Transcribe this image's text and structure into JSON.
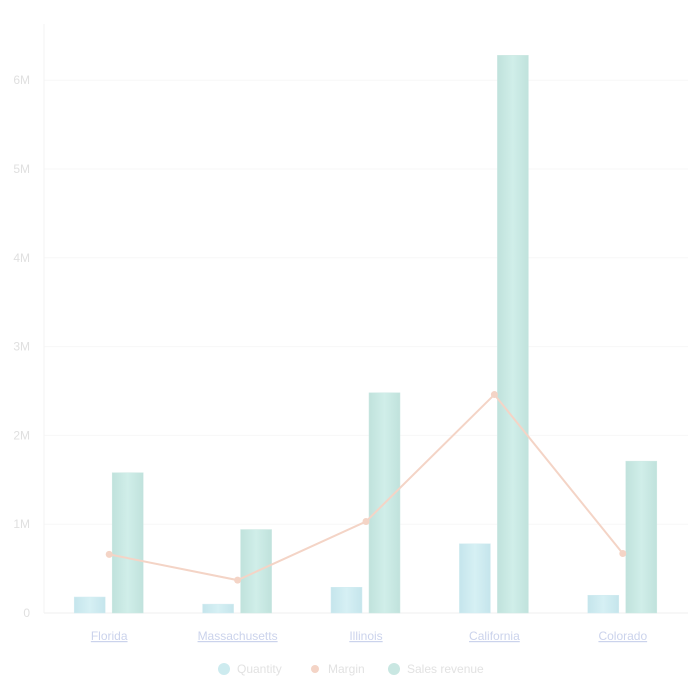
{
  "chart_data": {
    "type": "bar",
    "categories": [
      "Florida",
      "Massachusetts",
      "Illinois",
      "California",
      "Colorado"
    ],
    "series": [
      {
        "name": "Quantity",
        "kind": "bar",
        "color": "#c9eaef",
        "values": [
          180000,
          100000,
          290000,
          780000,
          200000
        ]
      },
      {
        "name": "Margin",
        "kind": "line",
        "color": "#f4d4c6",
        "values": [
          660000,
          370000,
          1030000,
          2460000,
          670000
        ]
      },
      {
        "name": "Sales revenue",
        "kind": "bar",
        "color": "#c7e6e1",
        "values": [
          1580000,
          940000,
          2480000,
          6280000,
          1710000
        ]
      }
    ],
    "y_ticks": [
      "0",
      "1M",
      "2M",
      "3M",
      "4M",
      "5M",
      "6M"
    ],
    "ylim": [
      0,
      6300000
    ],
    "grid": true,
    "legend_position": "bottom-center",
    "title": "",
    "xlabel": "",
    "ylabel": ""
  }
}
